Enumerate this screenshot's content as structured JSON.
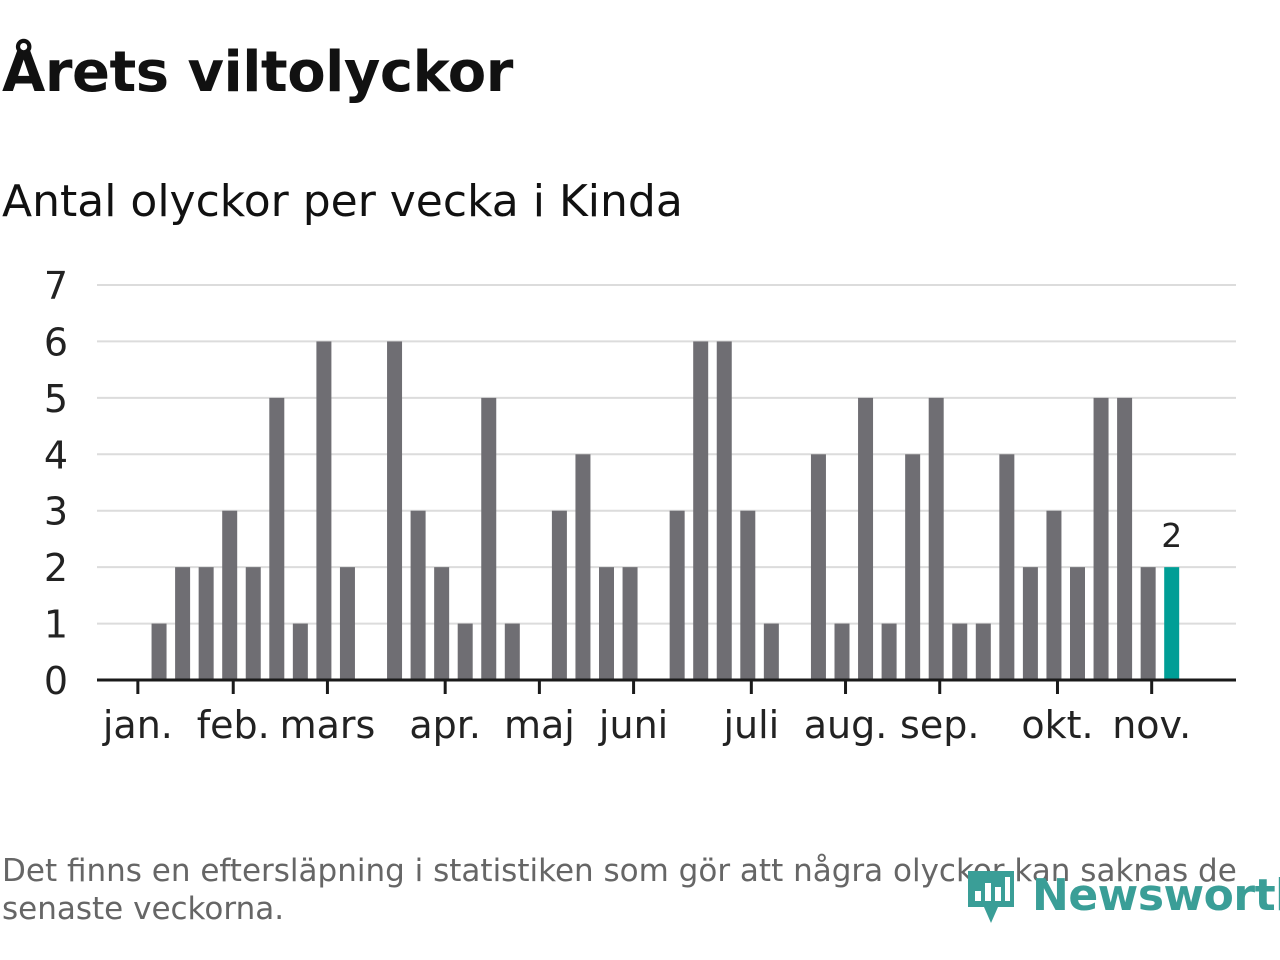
{
  "header": {
    "title": "Årets viltolyckor",
    "subtitle": "Antal olyckor per vecka i Kinda"
  },
  "footer": {
    "note_line1": "Det finns en eftersläpning i statistiken som gör att några olyckor kan saknas de",
    "note_line2": "senaste veckorna."
  },
  "brand": {
    "name": "Newsworthy",
    "color": "#3a9e97"
  },
  "colors": {
    "bar": "#6f6e73",
    "highlight": "#009e96",
    "grid": "#dcdcdc",
    "axis": "#1a1a1a",
    "text": "#222222"
  },
  "chart_data": {
    "type": "bar",
    "title": "Årets viltolyckor",
    "subtitle": "Antal olyckor per vecka i Kinda",
    "xlabel": "",
    "ylabel": "",
    "ylim": [
      0,
      7
    ],
    "yticks": [
      0,
      1,
      2,
      3,
      4,
      5,
      6,
      7
    ],
    "grid": true,
    "x": [
      1,
      2,
      3,
      4,
      5,
      6,
      7,
      8,
      9,
      10,
      11,
      12,
      13,
      14,
      15,
      16,
      17,
      18,
      19,
      20,
      21,
      22,
      23,
      24,
      25,
      26,
      27,
      28,
      29,
      30,
      31,
      32,
      33,
      34,
      35,
      36,
      37,
      38,
      39,
      40,
      41,
      42,
      43,
      44,
      45
    ],
    "values": [
      0,
      1,
      2,
      2,
      3,
      2,
      5,
      1,
      6,
      2,
      0,
      6,
      3,
      2,
      1,
      5,
      1,
      0,
      3,
      4,
      2,
      2,
      0,
      3,
      6,
      6,
      3,
      1,
      0,
      4,
      1,
      5,
      1,
      4,
      5,
      1,
      1,
      4,
      2,
      3,
      2,
      5,
      5,
      2,
      2
    ],
    "highlight_index": 44,
    "highlight_label": "2",
    "month_ticks": [
      {
        "label": "jan.",
        "week": 1.1
      },
      {
        "label": "feb.",
        "week": 5.15
      },
      {
        "label": "mars",
        "week": 9.15
      },
      {
        "label": "apr.",
        "week": 14.15
      },
      {
        "label": "maj",
        "week": 18.15
      },
      {
        "label": "juni",
        "week": 22.15
      },
      {
        "label": "juli",
        "week": 27.15
      },
      {
        "label": "aug.",
        "week": 31.15
      },
      {
        "label": "sep.",
        "week": 35.15
      },
      {
        "label": "okt.",
        "week": 40.15
      },
      {
        "label": "nov.",
        "week": 44.15
      }
    ]
  }
}
